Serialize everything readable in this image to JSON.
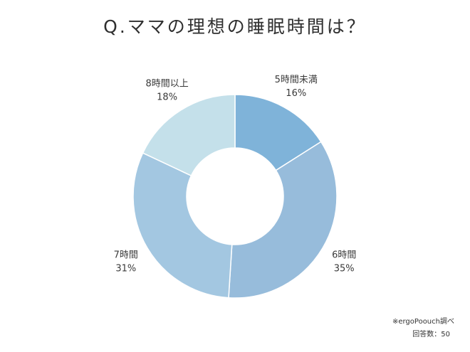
{
  "chart_data": {
    "type": "pie",
    "variant": "donut",
    "title": "Q.ママの理想の睡眠時間は？",
    "slices": [
      {
        "label": "5時間未満",
        "value": 16,
        "display": "16%",
        "color": "#7fb3d9"
      },
      {
        "label": "6時間",
        "value": 35,
        "display": "35%",
        "color": "#97bcdb"
      },
      {
        "label": "7時間",
        "value": 31,
        "display": "31%",
        "color": "#a3c7e1"
      },
      {
        "label": "8時間以上",
        "value": 18,
        "display": "18%",
        "color": "#c4e0ea"
      }
    ],
    "legend": "none",
    "notes": {
      "source": "※ergoPoouch調べ",
      "respondents": "回答数：50"
    }
  }
}
